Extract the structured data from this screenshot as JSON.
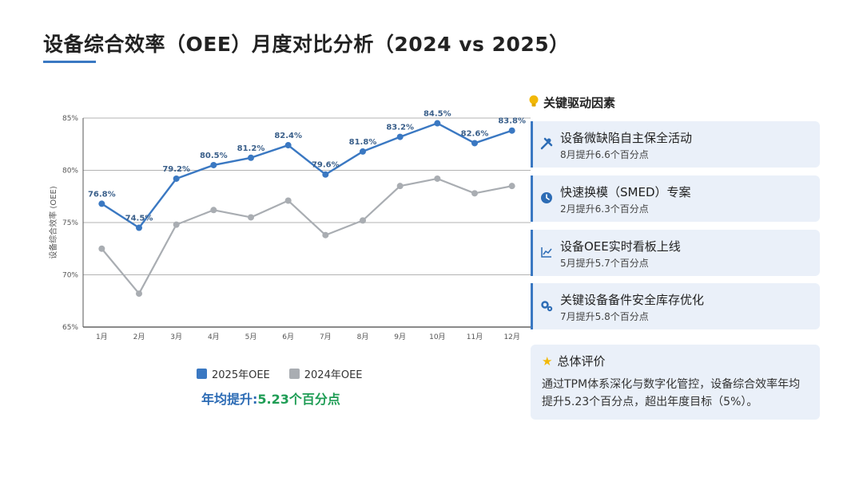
{
  "title": "设备综合效率（OEE）月度对比分析（2024 vs 2025）",
  "chart_data": {
    "type": "line",
    "categories": [
      "1月",
      "2月",
      "3月",
      "4月",
      "5月",
      "6月",
      "7月",
      "8月",
      "9月",
      "10月",
      "11月",
      "12月"
    ],
    "ylabel": "设备综合效率 (OEE)",
    "ylim": [
      65,
      85
    ],
    "yticks": [
      "65%",
      "70%",
      "75%",
      "80%",
      "85%"
    ],
    "ytick_values": [
      65,
      70,
      75,
      80,
      85
    ],
    "grid": true,
    "series": [
      {
        "name": "2025年OEE",
        "color": "#3a78c2",
        "values": [
          76.8,
          74.5,
          79.2,
          80.5,
          81.2,
          82.4,
          79.6,
          81.8,
          83.2,
          84.5,
          82.6,
          83.8
        ],
        "labels": [
          "76.8%",
          "74.5%",
          "79.2%",
          "80.5%",
          "81.2%",
          "82.4%",
          "79.6%",
          "81.8%",
          "83.2%",
          "84.5%",
          "82.6%",
          "83.8%"
        ]
      },
      {
        "name": "2024年OEE",
        "color": "#a9adb2",
        "values": [
          72.5,
          68.2,
          74.8,
          76.2,
          75.5,
          77.1,
          73.8,
          75.2,
          78.5,
          79.2,
          77.8,
          78.5
        ]
      }
    ]
  },
  "legend": {
    "series1": "2025年OEE",
    "series2": "2024年OEE"
  },
  "average": {
    "label": "年均提升:",
    "value": "5.23个百分点"
  },
  "drivers": {
    "title": "关键驱动因素",
    "items": [
      {
        "title": "设备微缺陷自主保全活动",
        "sub": "8月提升6.6个百分点",
        "icon": "tools-icon"
      },
      {
        "title": "快速换模（SMED）专案",
        "sub": "2月提升6.3个百分点",
        "icon": "clock-icon"
      },
      {
        "title": "设备OEE实时看板上线",
        "sub": "5月提升5.7个百分点",
        "icon": "chart-line-icon"
      },
      {
        "title": "关键设备备件安全库存优化",
        "sub": "7月提升5.8个百分点",
        "icon": "gears-icon"
      }
    ]
  },
  "summary": {
    "title": "总体评价",
    "body": "通过TPM体系深化与数字化管控，设备综合效率年均提升5.23个百分点，超出年度目标（5%）。"
  }
}
